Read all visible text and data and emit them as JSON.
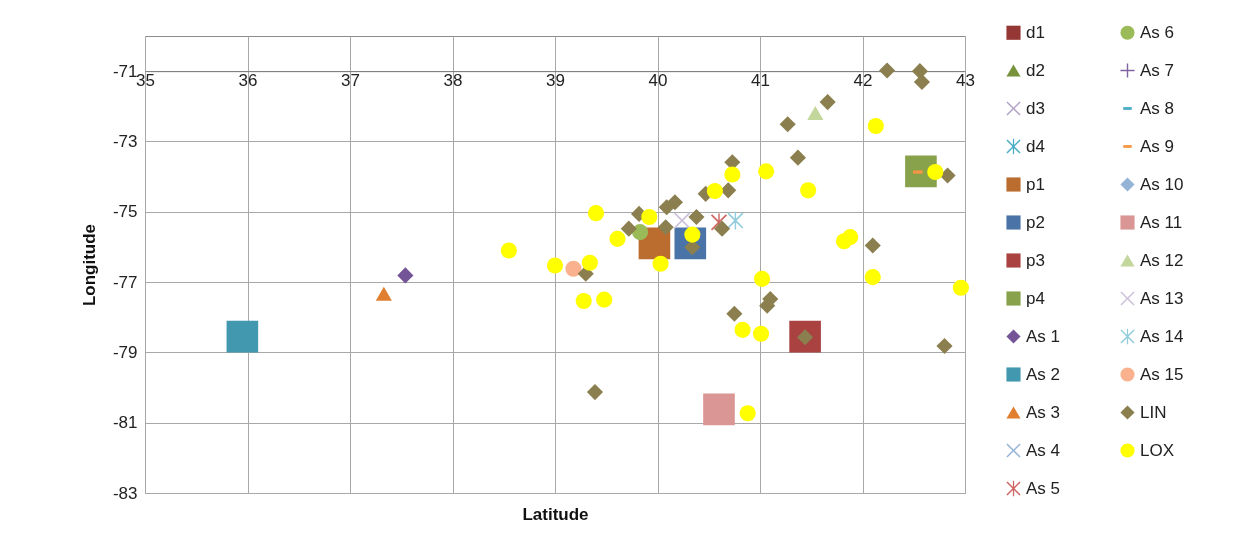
{
  "chart_data": {
    "type": "scatter",
    "xlabel": "Latitude",
    "ylabel": "Longitude",
    "xlim": [
      35,
      43
    ],
    "ylim": [
      -83,
      -70
    ],
    "xticks": [
      35,
      36,
      37,
      38,
      39,
      40,
      41,
      42,
      43
    ],
    "yticks": [
      -83,
      -81,
      -79,
      -77,
      -75,
      -73,
      -71
    ],
    "grid": true,
    "legend": "right",
    "series": [
      {
        "name": "d1",
        "color": "#953735",
        "marker": "square"
      },
      {
        "name": "d2",
        "color": "#77933c",
        "marker": "triangle"
      },
      {
        "name": "d3",
        "color": "#b3a2c7",
        "marker": "cross"
      },
      {
        "name": "d4",
        "color": "#4bacc6",
        "marker": "star"
      },
      {
        "name": "p1",
        "color": "#bb6c2f",
        "marker": "square",
        "x": [
          39.97
        ],
        "values": [
          -75.9
        ]
      },
      {
        "name": "p2",
        "color": "#4a73a8",
        "marker": "square",
        "x": [
          40.32
        ],
        "values": [
          -75.9
        ]
      },
      {
        "name": "p3",
        "color": "#aa4241",
        "marker": "square",
        "x": [
          41.44
        ],
        "values": [
          -78.55
        ]
      },
      {
        "name": "p4",
        "color": "#87a24a",
        "marker": "square",
        "x": [
          42.57
        ],
        "values": [
          -73.85
        ]
      },
      {
        "name": "As 1",
        "color": "#735496",
        "marker": "diamond",
        "x": [
          37.54
        ],
        "values": [
          -76.81
        ]
      },
      {
        "name": "As 2",
        "color": "#4198af",
        "marker": "square",
        "x": [
          35.95
        ],
        "values": [
          -78.55
        ]
      },
      {
        "name": "As 3",
        "color": "#e07f2f",
        "marker": "triangle",
        "x": [
          37.33
        ],
        "values": [
          -77.33
        ]
      },
      {
        "name": "As 4",
        "color": "#95b3d7",
        "marker": "cross"
      },
      {
        "name": "As 5",
        "color": "#d06663",
        "marker": "star",
        "x": [
          40.6
        ],
        "values": [
          -75.3
        ]
      },
      {
        "name": "As 6",
        "color": "#9bbb59",
        "marker": "circle",
        "x": [
          39.83
        ],
        "values": [
          -75.58
        ]
      },
      {
        "name": "As 7",
        "color": "#8064a2",
        "marker": "plus"
      },
      {
        "name": "As 8",
        "color": "#4bacc6"
      },
      {
        "name": "As 9",
        "color": "#f79646",
        "x": [
          42.54
        ],
        "values": [
          -73.87
        ]
      },
      {
        "name": "As 10",
        "color": "#95b3d7",
        "marker": "diamond"
      },
      {
        "name": "As 11",
        "color": "#d99694",
        "marker": "square",
        "x": [
          40.6
        ],
        "values": [
          -80.62
        ]
      },
      {
        "name": "As 12",
        "color": "#c3d69b",
        "marker": "triangle",
        "x": [
          41.54
        ],
        "values": [
          -72.19
        ]
      },
      {
        "name": "As 13",
        "color": "#ccc1da",
        "marker": "cross",
        "x": [
          40.24
        ],
        "values": [
          -75.25
        ]
      },
      {
        "name": "As 14",
        "color": "#93cddd",
        "marker": "star",
        "x": [
          40.76
        ],
        "values": [
          -75.25
        ]
      },
      {
        "name": "As 15",
        "color": "#f9b18e",
        "marker": "circle",
        "x": [
          39.18
        ],
        "values": [
          -76.62
        ]
      },
      {
        "name": "LIN",
        "color": "#8b7f4f",
        "marker": "diamond",
        "x": [
          42.24,
          42.56,
          42.58,
          41.66,
          41.27,
          41.37,
          40.73,
          42.83,
          40.69,
          40.47,
          40.17,
          40.09,
          39.82,
          40.38,
          40.08,
          39.72,
          40.63,
          42.1,
          40.34,
          39.3,
          40.75,
          41.1,
          41.07,
          41.44,
          42.8,
          39.39
        ],
        "values": [
          -70.98,
          -71.0,
          -71.31,
          -71.88,
          -72.51,
          -73.46,
          -73.59,
          -73.97,
          -74.39,
          -74.49,
          -74.73,
          -74.87,
          -75.06,
          -75.15,
          -75.44,
          -75.48,
          -75.48,
          -75.96,
          -76.01,
          -76.76,
          -77.9,
          -77.48,
          -77.67,
          -78.57,
          -78.82,
          -80.13
        ]
      },
      {
        "name": "LOX",
        "color": "#ffff00",
        "marker": "circle",
        "x": [
          38.55,
          39.0,
          39.34,
          39.4,
          39.61,
          39.92,
          40.34,
          40.03,
          40.56,
          40.73,
          41.06,
          41.47,
          42.13,
          42.71,
          41.82,
          41.88,
          39.28,
          39.48,
          41.02,
          42.1,
          42.96,
          40.83,
          41.01,
          40.88
        ],
        "values": [
          -76.1,
          -76.53,
          -76.45,
          -75.04,
          -75.77,
          -75.15,
          -75.65,
          -76.48,
          -74.41,
          -73.94,
          -73.85,
          -74.39,
          -72.56,
          -73.87,
          -75.84,
          -75.72,
          -77.54,
          -77.5,
          -76.91,
          -76.86,
          -77.16,
          -78.36,
          -78.47,
          -80.73
        ]
      }
    ]
  }
}
